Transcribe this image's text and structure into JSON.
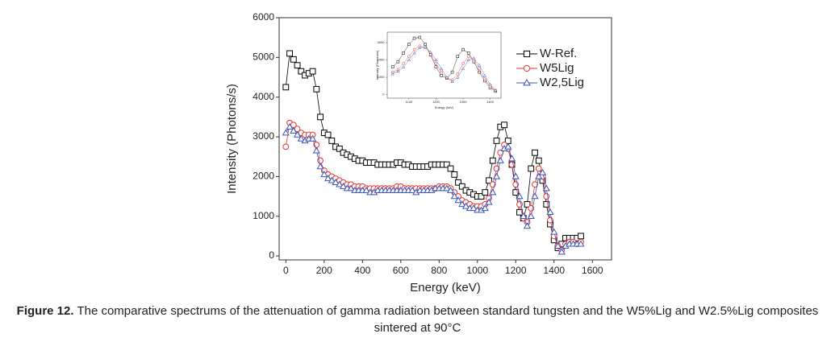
{
  "chart_data": [
    {
      "type": "line",
      "x_label": "Energy (keV)",
      "y_label": "Intensity (Photons/s)",
      "xlim": [
        -35,
        1700
      ],
      "ylim": [
        -100,
        6000
      ],
      "xticks": [
        0,
        200,
        400,
        600,
        800,
        1000,
        1200,
        1400,
        1600
      ],
      "yticks": [
        0,
        1000,
        2000,
        3000,
        4000,
        5000,
        6000
      ],
      "legend": "upper right",
      "x": [
        0,
        20,
        40,
        60,
        80,
        100,
        120,
        140,
        160,
        180,
        200,
        220,
        240,
        260,
        280,
        300,
        320,
        340,
        360,
        380,
        400,
        420,
        440,
        460,
        480,
        500,
        520,
        540,
        560,
        580,
        600,
        620,
        640,
        660,
        680,
        700,
        720,
        740,
        760,
        780,
        800,
        820,
        840,
        860,
        880,
        900,
        920,
        940,
        960,
        980,
        1000,
        1020,
        1040,
        1060,
        1080,
        1100,
        1120,
        1140,
        1160,
        1180,
        1200,
        1220,
        1240,
        1260,
        1280,
        1300,
        1320,
        1340,
        1360,
        1380,
        1400,
        1420,
        1440,
        1460,
        1480,
        1500,
        1520,
        1540
      ],
      "series": [
        {
          "name": "W-Ref.",
          "color": "#000000",
          "marker": "square",
          "values": [
            4250,
            5100,
            4950,
            4800,
            4650,
            4550,
            4600,
            4650,
            4200,
            3500,
            3100,
            3050,
            2900,
            2750,
            2700,
            2600,
            2550,
            2500,
            2450,
            2400,
            2400,
            2350,
            2350,
            2350,
            2300,
            2300,
            2300,
            2300,
            2300,
            2350,
            2350,
            2300,
            2300,
            2250,
            2250,
            2250,
            2250,
            2250,
            2300,
            2300,
            2300,
            2300,
            2300,
            2200,
            2050,
            1850,
            1750,
            1650,
            1600,
            1550,
            1500,
            1500,
            1600,
            1900,
            2400,
            2900,
            3250,
            3300,
            2900,
            2300,
            1600,
            1100,
            950,
            1300,
            2200,
            2600,
            2400,
            1900,
            1300,
            800,
            400,
            200,
            300,
            450,
            450,
            450,
            450,
            500
          ]
        },
        {
          "name": "W5Lig",
          "color": "#e8332b",
          "marker": "circle",
          "values": [
            2750,
            3350,
            3300,
            3200,
            3100,
            3050,
            3050,
            3050,
            2800,
            2400,
            2150,
            2050,
            2000,
            1950,
            1900,
            1850,
            1800,
            1800,
            1750,
            1750,
            1750,
            1700,
            1700,
            1700,
            1700,
            1700,
            1700,
            1700,
            1700,
            1750,
            1750,
            1700,
            1700,
            1700,
            1700,
            1700,
            1700,
            1700,
            1700,
            1700,
            1750,
            1750,
            1750,
            1700,
            1600,
            1500,
            1400,
            1350,
            1300,
            1250,
            1250,
            1250,
            1300,
            1450,
            1800,
            2200,
            2600,
            2800,
            2700,
            2300,
            1800,
            1300,
            950,
            850,
            1200,
            1800,
            2200,
            2000,
            1500,
            900,
            500,
            250,
            150,
            300,
            350,
            350,
            300,
            350
          ]
        },
        {
          "name": "W2,5Lig",
          "color": "#3b55b8",
          "marker": "triangle",
          "values": [
            3100,
            3250,
            3150,
            3050,
            2950,
            2900,
            2950,
            2950,
            2650,
            2250,
            2050,
            1950,
            1900,
            1850,
            1800,
            1750,
            1700,
            1700,
            1650,
            1650,
            1650,
            1650,
            1600,
            1600,
            1650,
            1650,
            1650,
            1650,
            1650,
            1650,
            1650,
            1650,
            1650,
            1650,
            1600,
            1650,
            1650,
            1650,
            1650,
            1700,
            1700,
            1700,
            1700,
            1650,
            1500,
            1400,
            1300,
            1250,
            1200,
            1200,
            1150,
            1150,
            1200,
            1350,
            1600,
            2000,
            2400,
            2700,
            2750,
            2450,
            2000,
            1500,
            1000,
            750,
            1000,
            1500,
            2000,
            2100,
            1700,
            1100,
            600,
            250,
            100,
            250,
            300,
            300,
            300,
            300
          ]
        }
      ]
    },
    {
      "type": "line",
      "x_label": "Energy (keV)",
      "y_label": "Intensity (Photons/s)",
      "xlim": [
        1020,
        1440
      ],
      "ylim": [
        -200,
        3600
      ],
      "xticks": [
        1100,
        1200,
        1300,
        1400
      ],
      "yticks": [
        0,
        1000,
        2000,
        3000
      ],
      "x": [
        1040,
        1060,
        1080,
        1100,
        1120,
        1140,
        1160,
        1180,
        1200,
        1220,
        1240,
        1260,
        1280,
        1300,
        1320,
        1340,
        1360,
        1380,
        1400,
        1420
      ],
      "series": [
        {
          "color": "#000000",
          "marker": "square",
          "values": [
            1600,
            1900,
            2400,
            2900,
            3250,
            3300,
            2900,
            2300,
            1600,
            1100,
            950,
            1300,
            2200,
            2600,
            2400,
            1900,
            1300,
            800,
            400,
            200
          ]
        },
        {
          "color": "#e8332b",
          "marker": "circle",
          "values": [
            1300,
            1450,
            1800,
            2200,
            2600,
            2800,
            2700,
            2300,
            1800,
            1300,
            950,
            850,
            1200,
            1800,
            2200,
            2000,
            1500,
            900,
            500,
            250
          ]
        },
        {
          "color": "#3b55b8",
          "marker": "triangle",
          "values": [
            1200,
            1350,
            1600,
            2000,
            2400,
            2700,
            2750,
            2450,
            2000,
            1500,
            1000,
            750,
            1000,
            1500,
            2000,
            2100,
            1700,
            1100,
            600,
            250
          ]
        }
      ]
    }
  ],
  "caption": {
    "label": "Figure 12.",
    "text": "The comparative spectrums of the attenuation of gamma radiation between standard tungsten and the W5%Lig and W2.5%Lig composites sintered at 90°C"
  }
}
